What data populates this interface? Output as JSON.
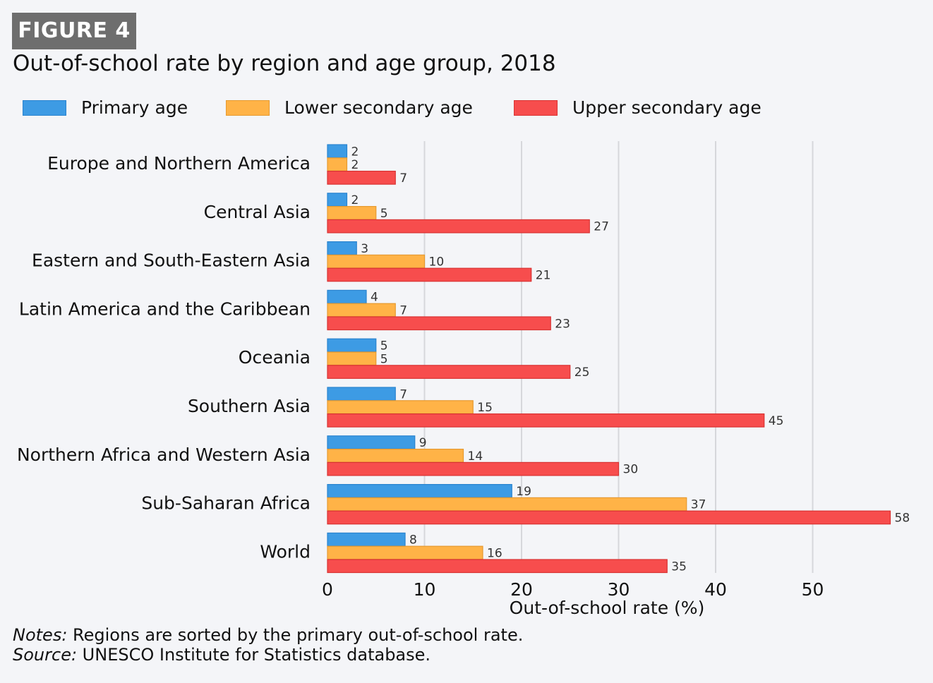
{
  "figure_label": "FIGURE 4",
  "title": "Out-of-school rate by region and age group, 2018",
  "legend": [
    {
      "name": "Primary age",
      "color": "#3d9be4"
    },
    {
      "name": "Lower secondary age",
      "color": "#ffb347"
    },
    {
      "name": "Upper secondary age",
      "color": "#f74d4d"
    }
  ],
  "notes": {
    "notes_label": "Notes:",
    "notes_text": " Regions are sorted by the primary out-of-school rate.",
    "source_label": "Source:",
    "source_text": " UNESCO Institute for Statistics database."
  },
  "chart_data": {
    "type": "bar",
    "orientation": "horizontal",
    "title": "Out-of-school rate by region and age group, 2018",
    "xlabel": "Out-of-school rate (%)",
    "ylabel": "",
    "xlim": [
      0,
      58
    ],
    "xticks": [
      0,
      10,
      20,
      30,
      40,
      50
    ],
    "grid": true,
    "legend_position": "top",
    "categories": [
      "Europe and Northern America",
      "Central Asia",
      "Eastern and South-Eastern Asia",
      "Latin America and the Caribbean",
      "Oceania",
      "Southern Asia",
      "Northern Africa and Western Asia",
      "Sub-Saharan Africa",
      "World"
    ],
    "series": [
      {
        "name": "Primary age",
        "color": "#3d9be4",
        "values": [
          2,
          2,
          3,
          4,
          5,
          7,
          9,
          19,
          8
        ]
      },
      {
        "name": "Lower secondary age",
        "color": "#ffb347",
        "values": [
          2,
          5,
          10,
          7,
          5,
          15,
          14,
          37,
          16
        ]
      },
      {
        "name": "Upper secondary age",
        "color": "#f74d4d",
        "values": [
          7,
          27,
          21,
          23,
          25,
          45,
          30,
          58,
          35
        ]
      }
    ]
  }
}
